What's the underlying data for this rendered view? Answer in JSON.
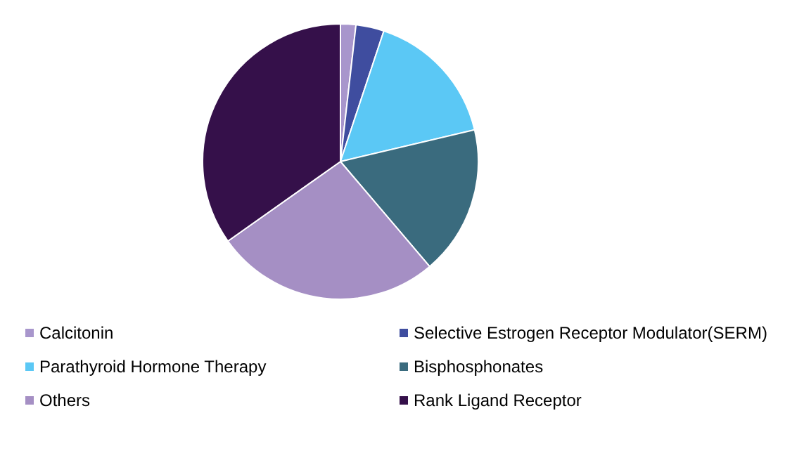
{
  "chart_data": {
    "type": "pie",
    "categories": [
      "Calcitonin",
      "Selective Estrogen Receptor Modulator(SERM)",
      "Parathyroid Hormone Therapy",
      "Bisphosphonates",
      "Others",
      "Rank Ligand Receptor"
    ],
    "values": [
      1.8,
      3.3,
      16.2,
      17.5,
      26.4,
      34.8
    ],
    "colors": [
      "#a896cc",
      "#3f4d9f",
      "#5bc8f5",
      "#3a6b7e",
      "#a58fc4",
      "#35104a"
    ],
    "legend": "bottom"
  }
}
